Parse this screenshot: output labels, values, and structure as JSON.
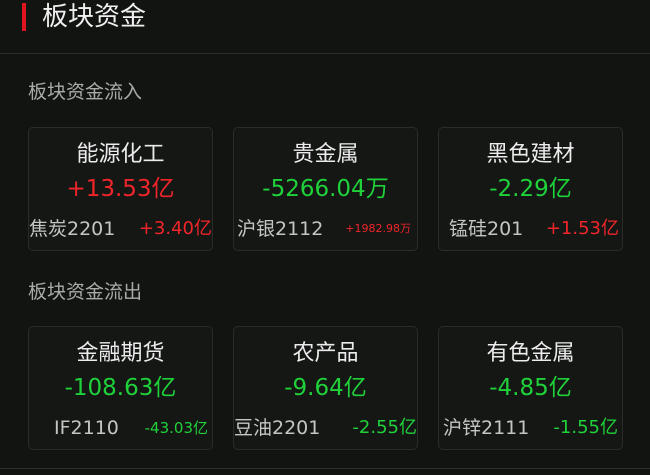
{
  "header": {
    "title": "板块资金",
    "accent_color": "#e0141e"
  },
  "colors": {
    "up": "#f0252a",
    "down": "#1fd23a",
    "background": "#121412"
  },
  "inflow": {
    "label": "板块资金流入",
    "cards": [
      {
        "name": "能源化工",
        "value": "+13.53亿",
        "trend": "up",
        "sub_name": "焦炭2201",
        "sub_value": "+3.40亿",
        "sub_trend": "up"
      },
      {
        "name": "贵金属",
        "value": "-5266.04万",
        "trend": "down",
        "sub_name": "沪银2112",
        "sub_value": "+1982.98万",
        "sub_trend": "up"
      },
      {
        "name": "黑色建材",
        "value": "-2.29亿",
        "trend": "down",
        "sub_name": "锰硅201",
        "sub_value": "+1.53亿",
        "sub_trend": "up"
      }
    ]
  },
  "outflow": {
    "label": "板块资金流出",
    "cards": [
      {
        "name": "金融期货",
        "value": "-108.63亿",
        "trend": "down",
        "sub_name": "IF2110",
        "sub_value": "-43.03亿",
        "sub_trend": "down"
      },
      {
        "name": "农产品",
        "value": "-9.64亿",
        "trend": "down",
        "sub_name": "豆油2201",
        "sub_value": "-2.55亿",
        "sub_trend": "down"
      },
      {
        "name": "有色金属",
        "value": "-4.85亿",
        "trend": "down",
        "sub_name": "沪锌2111",
        "sub_value": "-1.55亿",
        "sub_trend": "down"
      }
    ]
  }
}
